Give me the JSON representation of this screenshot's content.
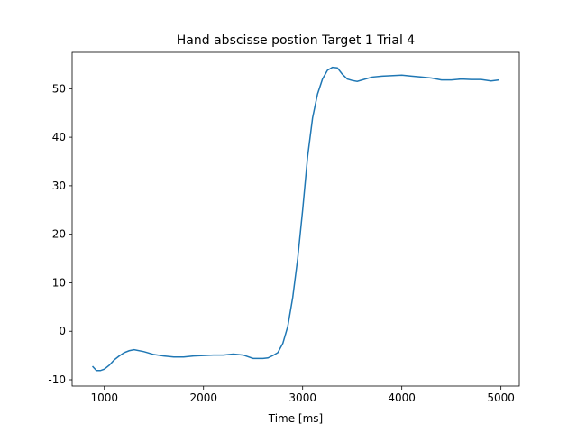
{
  "chart_data": {
    "type": "line",
    "title": "Hand abscisse postion Target 1 Trial 4",
    "x_label": "Time [ms]",
    "x": [
      880,
      920,
      960,
      1000,
      1050,
      1100,
      1150,
      1200,
      1250,
      1300,
      1400,
      1500,
      1600,
      1700,
      1800,
      1900,
      2000,
      2100,
      2200,
      2300,
      2400,
      2500,
      2600,
      2650,
      2700,
      2750,
      2800,
      2850,
      2900,
      2950,
      3000,
      3050,
      3100,
      3150,
      3200,
      3250,
      3300,
      3350,
      3400,
      3450,
      3500,
      3550,
      3600,
      3700,
      3800,
      4000,
      4100,
      4200,
      4300,
      4400,
      4500,
      4600,
      4700,
      4800,
      4900,
      4980
    ],
    "series": [
      {
        "color": "#1f77b4",
        "values": [
          -7.2,
          -8.1,
          -8.1,
          -7.8,
          -7.0,
          -5.9,
          -5.1,
          -4.4,
          -4.0,
          -3.8,
          -4.2,
          -4.8,
          -5.1,
          -5.3,
          -5.3,
          -5.1,
          -5.0,
          -4.9,
          -4.9,
          -4.7,
          -4.9,
          -5.6,
          -5.6,
          -5.5,
          -5.0,
          -4.4,
          -2.5,
          1.0,
          7.0,
          15.0,
          25.0,
          36.0,
          44.0,
          48.9,
          52.0,
          53.8,
          54.4,
          54.3,
          53.0,
          52.0,
          51.7,
          51.5,
          51.8,
          52.4,
          52.6,
          52.8,
          52.6,
          52.4,
          52.2,
          51.8,
          51.8,
          52.0,
          51.9,
          51.9,
          51.6,
          51.8
        ]
      }
    ],
    "xlim": [
      675,
      5185
    ],
    "ylim": [
      -11.3,
      57.5
    ],
    "xticks": [
      1000,
      2000,
      3000,
      4000,
      5000
    ],
    "yticks": [
      -10,
      0,
      10,
      20,
      30,
      40,
      50
    ]
  }
}
